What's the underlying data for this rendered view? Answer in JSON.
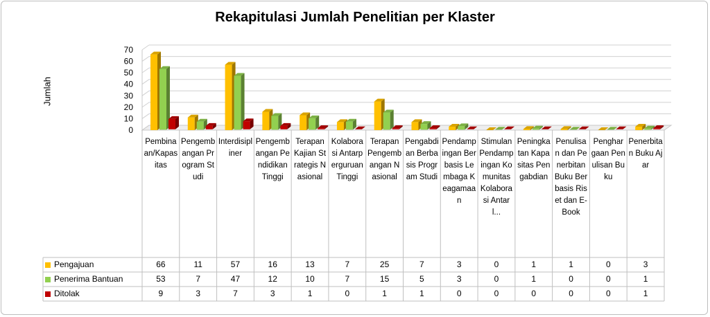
{
  "chart_data": {
    "type": "bar",
    "title": "Rekapitulasi Jumlah Penelitian per Klaster",
    "ylabel": "Jumlah",
    "ylim": [
      0,
      70
    ],
    "yticks": [
      0,
      10,
      20,
      30,
      40,
      50,
      60,
      70
    ],
    "grid": true,
    "legend": "data-table-left",
    "categories": [
      "Pembinaan/Kapasitas",
      "Pengembangan Program Studi",
      "Interdisipliner",
      "Pengembangan Pendidikan Tinggi",
      "Terapan Kajian Strategis Nasional",
      "Kolaborasi Antarperguruan Tinggi",
      "Terapan Pengembangan Nasional",
      "Pengabdian Berbasis Program Studi",
      "Pendampingan Berbasis Lembaga Keagamaan",
      "Stimulan Pendampingan Komunitas Kolaborasi Antarl...",
      "Peningkatan Kapasitas Pengabdian",
      "Penulisan dan Penerbitan Buku Berbasis Riset dan E-Book",
      "Penghargaan Penulisan Buku",
      "Penerbitan Buku Ajar"
    ],
    "series": [
      {
        "name": "Pengajuan",
        "color": "#FFC000",
        "values": [
          66,
          11,
          57,
          16,
          13,
          7,
          25,
          7,
          3,
          0,
          1,
          1,
          0,
          3
        ]
      },
      {
        "name": "Penerima Bantuan",
        "color": "#92D050",
        "values": [
          53,
          7,
          47,
          12,
          10,
          7,
          15,
          5,
          3,
          0,
          1,
          0,
          0,
          1
        ]
      },
      {
        "name": "Ditolak",
        "color": "#C00000",
        "values": [
          9,
          3,
          7,
          3,
          1,
          0,
          1,
          1,
          0,
          0,
          0,
          0,
          0,
          1
        ]
      }
    ]
  }
}
